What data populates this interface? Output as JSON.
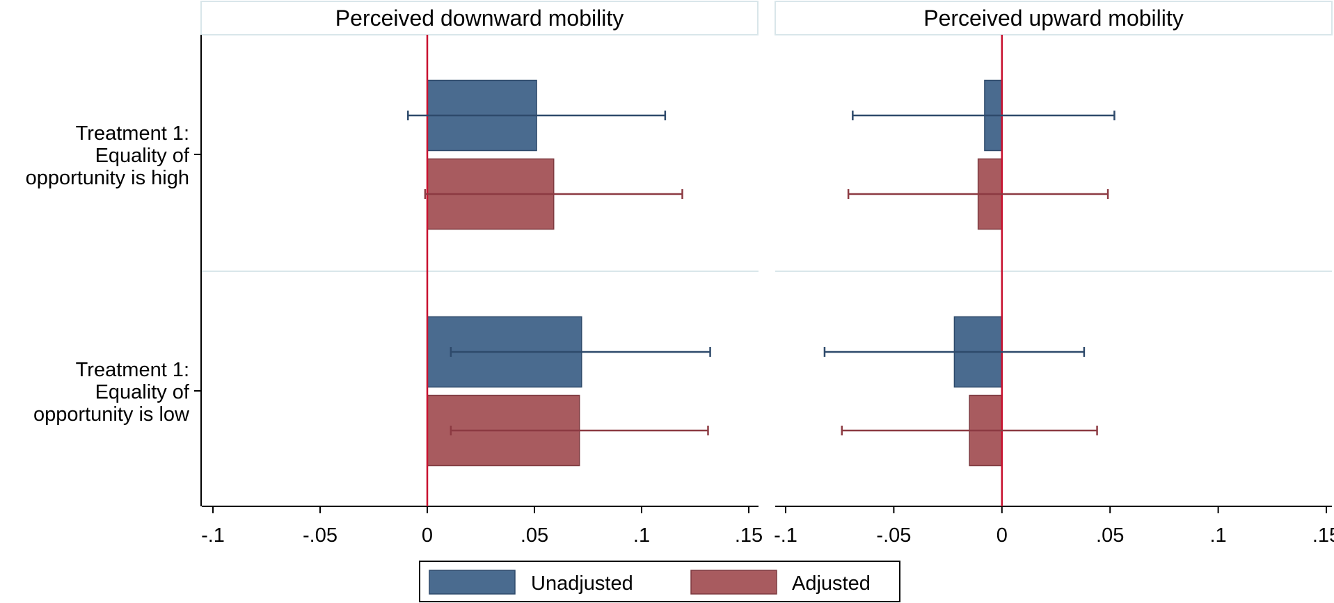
{
  "chart_data": {
    "type": "bar",
    "orientation": "horizontal",
    "categories": [
      [
        "Treatment 1:",
        "Equality of",
        "opportunity is high"
      ],
      [
        "Treatment 1:",
        "Equality of",
        "opportunity is low"
      ]
    ],
    "xlim": [
      -0.1,
      0.15
    ],
    "xticks": [
      -0.1,
      -0.05,
      0,
      0.05,
      0.1,
      0.15
    ],
    "xtick_labels": [
      "-.1",
      "-.05",
      "0",
      ".05",
      ".1",
      ".15"
    ],
    "reference_line": 0,
    "legend": {
      "position": "bottom",
      "entries": [
        "Unadjusted",
        "Adjusted"
      ]
    },
    "colors": {
      "Unadjusted": "#4a6b8f",
      "Adjusted": "#a85b5f",
      "reference_line": "#c8102e",
      "frame": "#d9e6ea"
    },
    "panels": [
      {
        "title": "Perceived downward mobility",
        "series": [
          {
            "name": "Unadjusted",
            "values": [
              0.051,
              0.072
            ],
            "ci_low": [
              -0.009,
              0.011
            ],
            "ci_high": [
              0.111,
              0.132
            ]
          },
          {
            "name": "Adjusted",
            "values": [
              0.059,
              0.071
            ],
            "ci_low": [
              -0.001,
              0.011
            ],
            "ci_high": [
              0.119,
              0.131
            ]
          }
        ]
      },
      {
        "title": "Perceived upward mobility",
        "series": [
          {
            "name": "Unadjusted",
            "values": [
              -0.008,
              -0.022
            ],
            "ci_low": [
              -0.069,
              -0.082
            ],
            "ci_high": [
              0.052,
              0.038
            ]
          },
          {
            "name": "Adjusted",
            "values": [
              -0.011,
              -0.015
            ],
            "ci_low": [
              -0.071,
              -0.074
            ],
            "ci_high": [
              0.049,
              0.044
            ]
          }
        ]
      }
    ]
  }
}
